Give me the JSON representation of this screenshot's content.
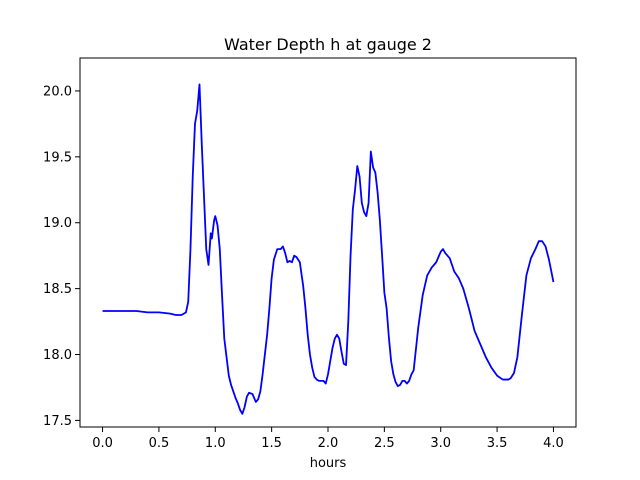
{
  "chart_data": {
    "type": "line",
    "title": "Water Depth h at gauge 2",
    "xlabel": "hours",
    "ylabel": "",
    "xlim": [
      -0.2,
      4.2
    ],
    "ylim": [
      17.45,
      20.25
    ],
    "xticks": [
      0.0,
      0.5,
      1.0,
      1.5,
      2.0,
      2.5,
      3.0,
      3.5,
      4.0
    ],
    "xtick_labels": [
      "0.0",
      "0.5",
      "1.0",
      "1.5",
      "2.0",
      "2.5",
      "3.0",
      "3.5",
      "4.0"
    ],
    "yticks": [
      17.5,
      18.0,
      18.5,
      19.0,
      19.5,
      20.0
    ],
    "ytick_labels": [
      "17.5",
      "18.0",
      "18.5",
      "19.0",
      "19.5",
      "20.0"
    ],
    "grid": false,
    "series": [
      {
        "color": "#0000ff",
        "x": [
          0.0,
          0.1,
          0.2,
          0.3,
          0.4,
          0.5,
          0.6,
          0.65,
          0.7,
          0.74,
          0.76,
          0.78,
          0.8,
          0.82,
          0.84,
          0.86,
          0.88,
          0.9,
          0.92,
          0.94,
          0.96,
          0.97,
          0.99,
          1.0,
          1.02,
          1.04,
          1.06,
          1.08,
          1.1,
          1.12,
          1.14,
          1.16,
          1.18,
          1.2,
          1.22,
          1.24,
          1.26,
          1.28,
          1.3,
          1.33,
          1.36,
          1.38,
          1.4,
          1.42,
          1.44,
          1.46,
          1.48,
          1.5,
          1.52,
          1.55,
          1.58,
          1.6,
          1.62,
          1.64,
          1.66,
          1.68,
          1.7,
          1.72,
          1.75,
          1.78,
          1.8,
          1.82,
          1.84,
          1.86,
          1.88,
          1.9,
          1.92,
          1.94,
          1.96,
          1.98,
          2.0,
          2.02,
          2.04,
          2.06,
          2.08,
          2.1,
          2.12,
          2.14,
          2.16,
          2.18,
          2.2,
          2.22,
          2.24,
          2.26,
          2.28,
          2.3,
          2.32,
          2.34,
          2.36,
          2.38,
          2.4,
          2.42,
          2.44,
          2.46,
          2.48,
          2.5,
          2.52,
          2.54,
          2.56,
          2.58,
          2.6,
          2.62,
          2.64,
          2.66,
          2.68,
          2.7,
          2.72,
          2.74,
          2.76,
          2.8,
          2.84,
          2.88,
          2.92,
          2.96,
          3.0,
          3.02,
          3.04,
          3.08,
          3.12,
          3.16,
          3.2,
          3.25,
          3.3,
          3.35,
          3.4,
          3.45,
          3.5,
          3.55,
          3.6,
          3.62,
          3.65,
          3.68,
          3.72,
          3.76,
          3.8,
          3.84,
          3.87,
          3.9,
          3.93,
          3.96,
          4.0
        ],
        "y": [
          18.33,
          18.33,
          18.33,
          18.33,
          18.32,
          18.32,
          18.31,
          18.3,
          18.3,
          18.32,
          18.4,
          18.8,
          19.35,
          19.75,
          19.85,
          20.05,
          19.6,
          19.2,
          18.8,
          18.68,
          18.92,
          18.88,
          19.02,
          19.05,
          18.98,
          18.8,
          18.45,
          18.12,
          17.98,
          17.84,
          17.77,
          17.72,
          17.67,
          17.63,
          17.58,
          17.55,
          17.6,
          17.68,
          17.71,
          17.7,
          17.64,
          17.66,
          17.72,
          17.85,
          18.0,
          18.15,
          18.35,
          18.58,
          18.72,
          18.8,
          18.8,
          18.82,
          18.77,
          18.7,
          18.71,
          18.7,
          18.75,
          18.74,
          18.7,
          18.52,
          18.35,
          18.15,
          18.0,
          17.9,
          17.83,
          17.81,
          17.8,
          17.8,
          17.8,
          17.78,
          17.85,
          17.95,
          18.05,
          18.12,
          18.15,
          18.12,
          18.02,
          17.93,
          17.92,
          18.25,
          18.75,
          19.1,
          19.25,
          19.43,
          19.35,
          19.15,
          19.08,
          19.05,
          19.15,
          19.54,
          19.42,
          19.38,
          19.23,
          19.02,
          18.75,
          18.47,
          18.35,
          18.13,
          17.95,
          17.85,
          17.79,
          17.76,
          17.77,
          17.8,
          17.8,
          17.78,
          17.8,
          17.85,
          17.88,
          18.2,
          18.45,
          18.6,
          18.66,
          18.7,
          18.78,
          18.8,
          18.77,
          18.73,
          18.63,
          18.58,
          18.5,
          18.35,
          18.18,
          18.08,
          17.98,
          17.9,
          17.84,
          17.81,
          17.81,
          17.82,
          17.86,
          17.98,
          18.3,
          18.6,
          18.73,
          18.8,
          18.86,
          18.86,
          18.82,
          18.72,
          18.55
        ]
      }
    ]
  }
}
